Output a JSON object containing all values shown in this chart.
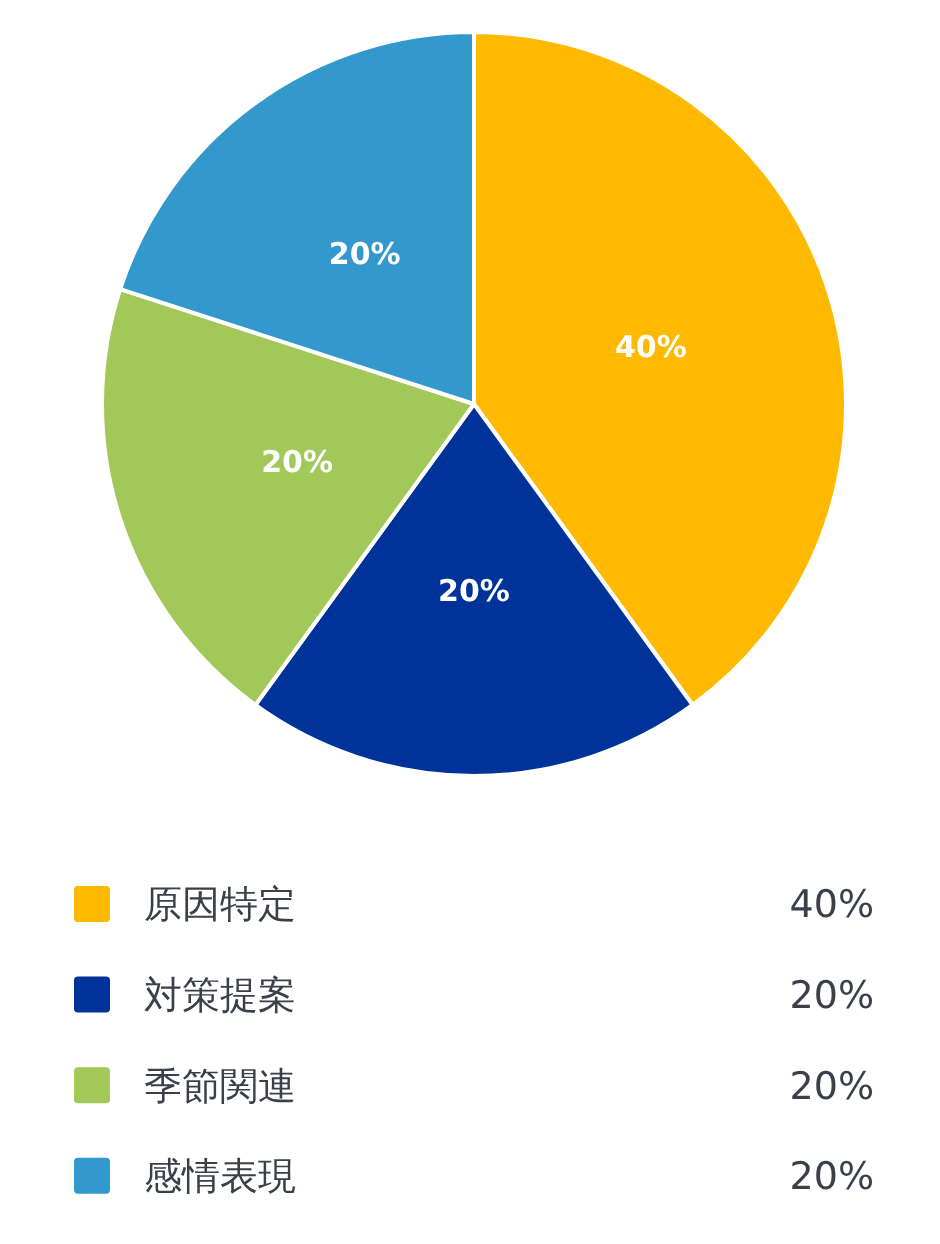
{
  "chart_data": {
    "type": "pie",
    "categories": [
      "原因特定",
      "対策提案",
      "季節関連",
      "感情表現"
    ],
    "values": [
      40,
      20,
      20,
      20
    ],
    "colors": [
      "#ffb900",
      "#003399",
      "#a3c85a",
      "#3399cc"
    ],
    "value_labels": [
      "40%",
      "20%",
      "20%",
      "20%"
    ],
    "legend": "bottom"
  }
}
